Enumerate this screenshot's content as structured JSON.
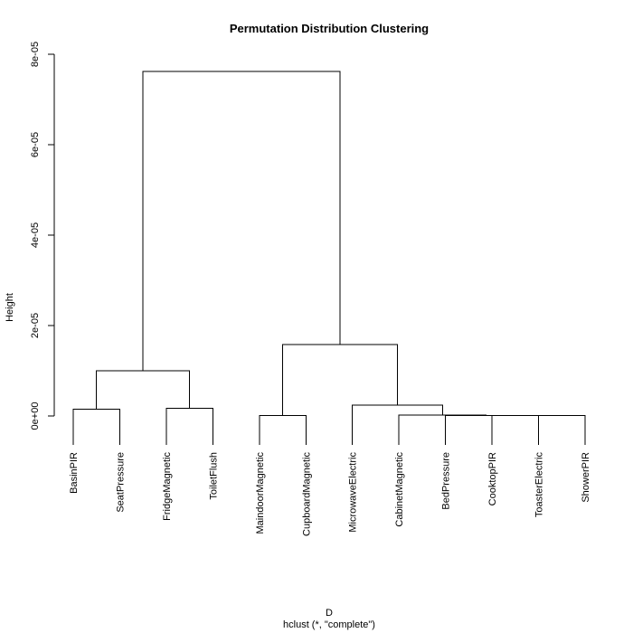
{
  "chart_data": {
    "type": "dendrogram",
    "title": "Permutation Distribution Clustering",
    "ylabel": "Height",
    "xlabel": "D",
    "sublabel": "hclust (*, \"complete\")",
    "ylim": [
      0,
      8e-05
    ],
    "yticks": [
      0,
      2e-05,
      4e-05,
      6e-05,
      8e-05
    ],
    "ytick_labels": [
      "0e+00",
      "2e-05",
      "4e-05",
      "6e-05",
      "8e-05"
    ],
    "leaves": [
      "BasinPIR",
      "SeatPressure",
      "FridgeMagnetic",
      "ToiletFlush",
      "MaindoorMagnetic",
      "CupboardMagnetic",
      "MicrowaveElectric",
      "CabinetMagnetic",
      "BedPressure",
      "CooktopPIR",
      "ToasterElectric",
      "ShowerPIR"
    ],
    "merges": [
      {
        "left": "L0",
        "right": "L1",
        "height": 1.5e-06
      },
      {
        "left": "L2",
        "right": "L3",
        "height": 1.7e-06
      },
      {
        "left": "M0",
        "right": "M1",
        "height": 1e-05
      },
      {
        "left": "L4",
        "right": "L5",
        "height": 1e-07
      },
      {
        "left": "L10",
        "right": "L11",
        "height": 1e-07
      },
      {
        "left": "L9",
        "right": "M4",
        "height": 1e-07
      },
      {
        "left": "L8",
        "right": "M5",
        "height": 1e-07
      },
      {
        "left": "L7",
        "right": "M6",
        "height": 2e-07
      },
      {
        "left": "L6",
        "right": "M7",
        "height": 2.4e-06
      },
      {
        "left": "M3",
        "right": "M8",
        "height": 1.58e-05
      },
      {
        "left": "M2",
        "right": "M9",
        "height": 7.62e-05
      }
    ]
  }
}
